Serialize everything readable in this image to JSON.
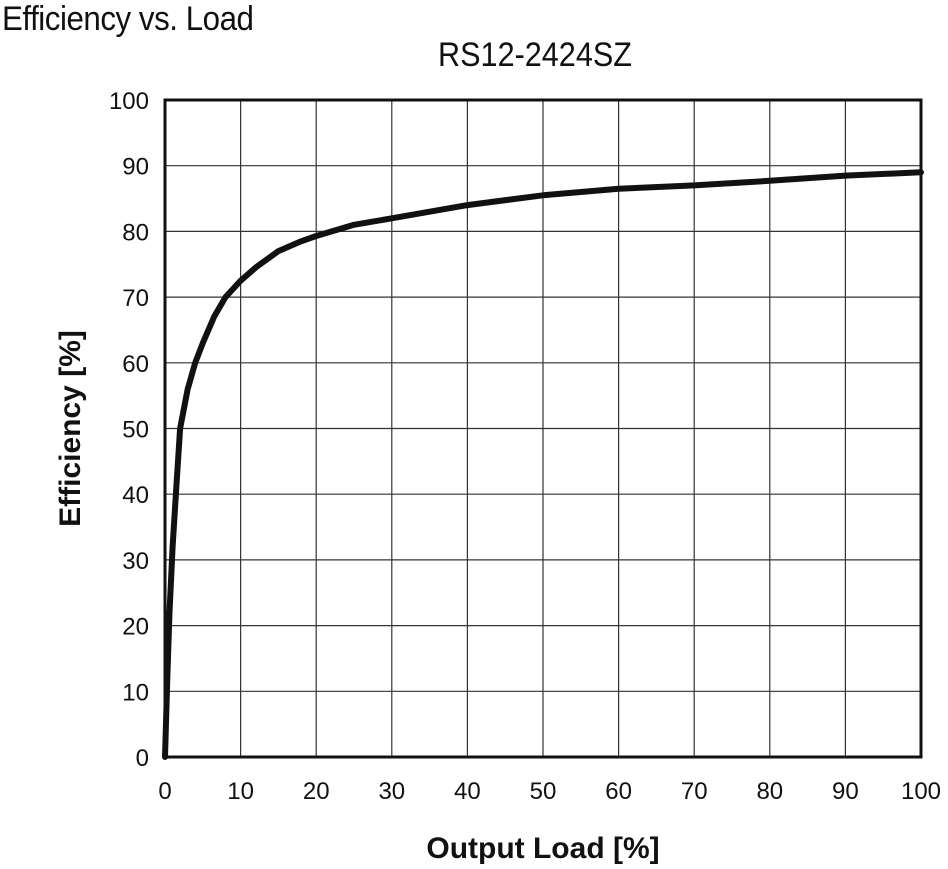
{
  "page": {
    "heading": "Efficiency vs. Load"
  },
  "chart_data": {
    "type": "line",
    "title": "RS12-2424SZ",
    "xlabel": "Output Load [%]",
    "ylabel": "Efficiency [%]",
    "xlim": [
      0,
      100
    ],
    "ylim": [
      0,
      100
    ],
    "xticks": [
      0,
      10,
      20,
      30,
      40,
      50,
      60,
      70,
      80,
      90,
      100
    ],
    "yticks": [
      0,
      10,
      20,
      30,
      40,
      50,
      60,
      70,
      80,
      90,
      100
    ],
    "grid": true,
    "legend": "none",
    "line_color": "#111111",
    "series": [
      {
        "x": [
          0,
          0.3,
          0.6,
          1.0,
          1.5,
          2.0,
          3.0,
          4.0,
          5.0,
          6.5,
          8.0,
          10.0,
          12.0,
          15.0,
          18.0,
          20.0,
          25.0,
          30.0,
          40.0,
          50.0,
          60.0,
          70.0,
          80.0,
          90.0,
          100.0
        ],
        "y": [
          0,
          12,
          22,
          32,
          41,
          50,
          56,
          60,
          63,
          67,
          70,
          72.5,
          74.5,
          77,
          78.5,
          79.3,
          81,
          82,
          84,
          85.5,
          86.5,
          87,
          87.7,
          88.5,
          89
        ]
      }
    ]
  }
}
